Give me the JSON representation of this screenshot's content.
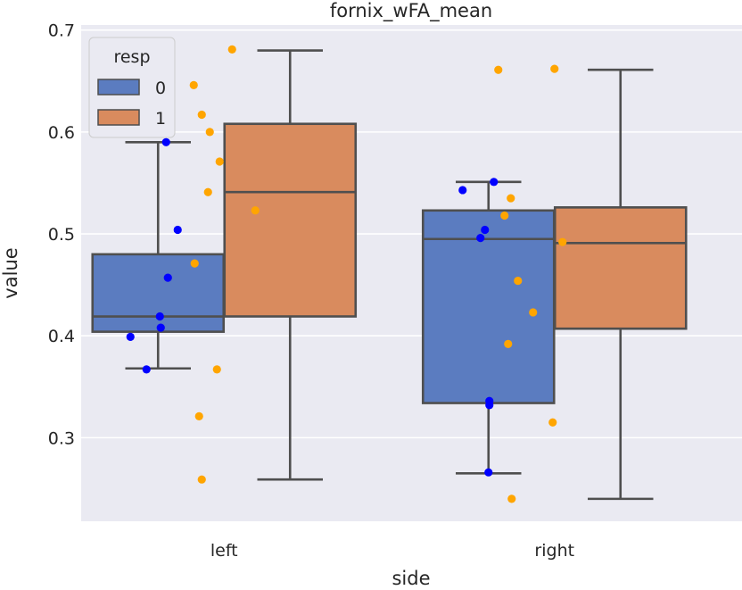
{
  "chart_data": {
    "type": "box",
    "title": "fornix_wFA_mean",
    "xlabel": "side",
    "ylabel": "value",
    "categories": [
      "left",
      "right"
    ],
    "ylim": [
      0.218,
      0.705
    ],
    "yticks": [
      0.3,
      0.4,
      0.5,
      0.6,
      0.7
    ],
    "grid": true,
    "legend": {
      "title": "resp",
      "placement": "top-left",
      "entries": [
        {
          "label": "0",
          "color": "#5b7cc0"
        },
        {
          "label": "1",
          "color": "#d98b5e"
        }
      ]
    },
    "series": [
      {
        "name": "0",
        "box_color": "#5b7cc0",
        "point_color": "#0000ff",
        "boxes": [
          {
            "category": "left",
            "whisker_low": 0.368,
            "q1": 0.404,
            "median": 0.419,
            "q3": 0.48,
            "whisker_high": 0.59
          },
          {
            "category": "right",
            "whisker_low": 0.265,
            "q1": 0.334,
            "median": 0.495,
            "q3": 0.523,
            "whisker_high": 0.551
          }
        ],
        "points": [
          {
            "category": "left",
            "values": [
              0.59,
              0.504,
              0.457,
              0.419,
              0.408,
              0.399,
              0.367
            ]
          },
          {
            "category": "right",
            "values": [
              0.551,
              0.543,
              0.504,
              0.496,
              0.336,
              0.332,
              0.266
            ]
          }
        ]
      },
      {
        "name": "1",
        "box_color": "#d98b5e",
        "point_color": "#ffa500",
        "boxes": [
          {
            "category": "left",
            "whisker_low": 0.259,
            "q1": 0.419,
            "median": 0.541,
            "q3": 0.608,
            "whisker_high": 0.68
          },
          {
            "category": "right",
            "whisker_low": 0.24,
            "q1": 0.407,
            "median": 0.491,
            "q3": 0.526,
            "whisker_high": 0.661
          }
        ],
        "points": [
          {
            "category": "left",
            "values": [
              0.681,
              0.646,
              0.617,
              0.6,
              0.571,
              0.541,
              0.523,
              0.471,
              0.367,
              0.321,
              0.259
            ]
          },
          {
            "category": "right",
            "values": [
              0.662,
              0.661,
              0.535,
              0.518,
              0.492,
              0.454,
              0.423,
              0.392,
              0.315,
              0.24
            ]
          }
        ]
      }
    ]
  }
}
